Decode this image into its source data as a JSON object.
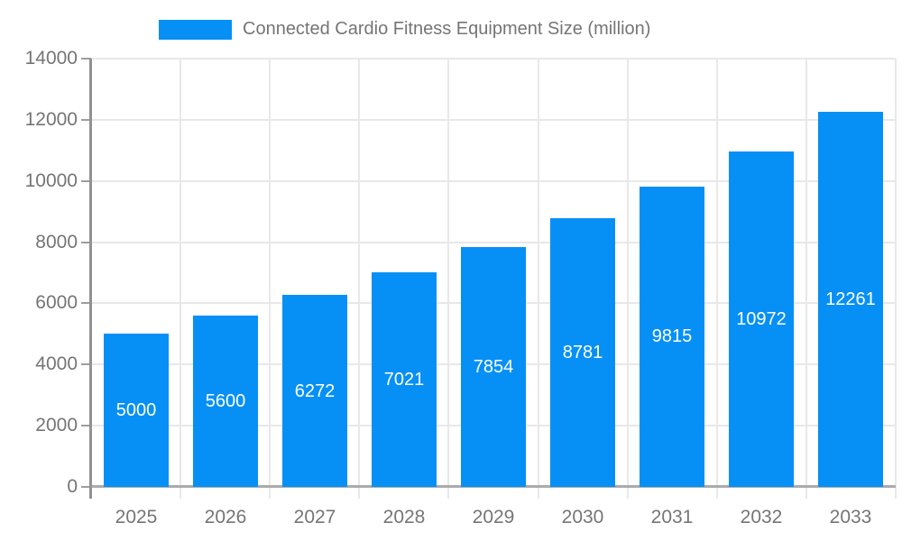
{
  "chart_data": {
    "type": "bar",
    "title": "Connected Cardio Fitness Equipment Size (million)",
    "legend_position": "top",
    "categories": [
      "2025",
      "2026",
      "2027",
      "2028",
      "2029",
      "2030",
      "2031",
      "2032",
      "2033"
    ],
    "series": [
      {
        "name": "Connected Cardio Fitness Equipment Size (million)",
        "values": [
          5000,
          5600,
          6272,
          7021,
          7854,
          8781,
          9815,
          10972,
          12261
        ]
      }
    ],
    "bar_labels_visible": true,
    "bar_label_position": "inside-center",
    "xlabel": "",
    "ylabel": "",
    "ylim": [
      0,
      14000
    ],
    "yticks": [
      0,
      2000,
      4000,
      6000,
      8000,
      10000,
      12000,
      14000
    ],
    "grid": true,
    "colors": {
      "bar": "#0690f5",
      "bar_label": "#ffffff",
      "axis_text": "#757575",
      "gridline": "#e8e8e8",
      "x_axis_line": "#ababab",
      "y_axis_line": "#919191",
      "tick": "#9e9e9e"
    }
  }
}
